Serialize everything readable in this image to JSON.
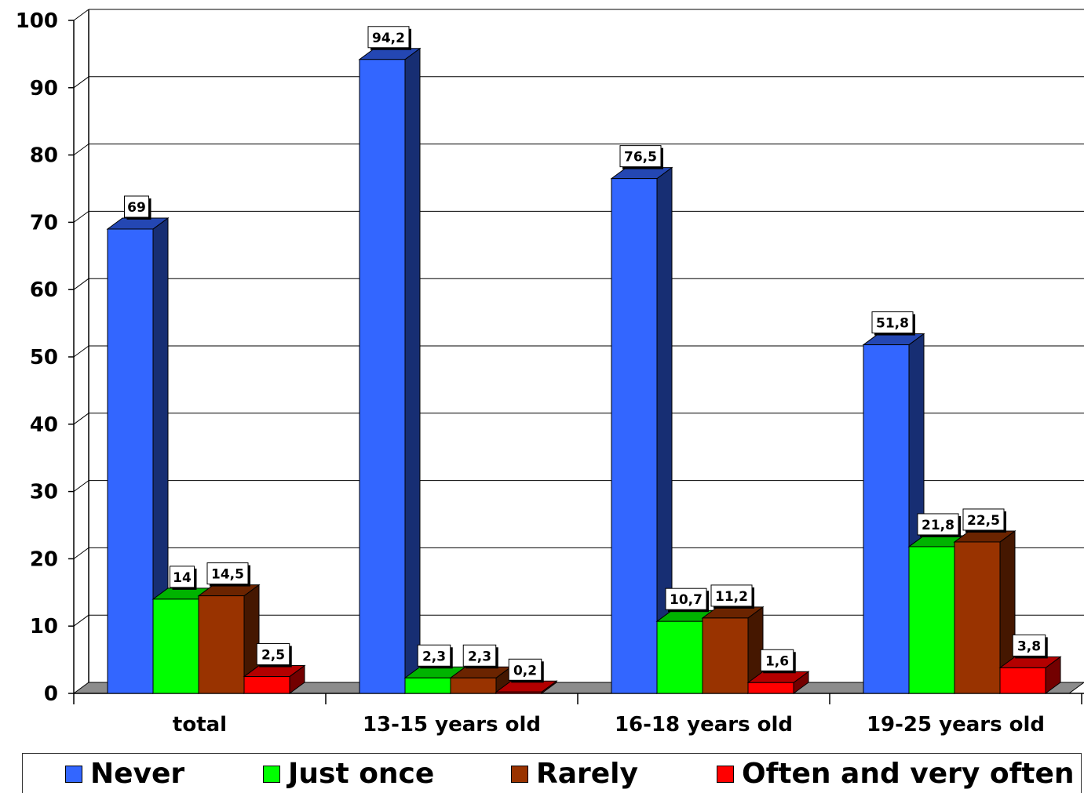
{
  "chart_data": {
    "type": "bar",
    "categories": [
      "total",
      "13-15 years old",
      "16-18 years old",
      "19-25 years old"
    ],
    "series": [
      {
        "name": "Never",
        "color": "#3366ff",
        "values": [
          69,
          94.2,
          76.5,
          51.8
        ],
        "labels": [
          "69",
          "94,2",
          "76,5",
          "51,8"
        ]
      },
      {
        "name": "Just once",
        "color": "#00ff00",
        "values": [
          14,
          2.3,
          10.7,
          21.8
        ],
        "labels": [
          "14",
          "2,3",
          "10,7",
          "21,8"
        ]
      },
      {
        "name": "Rarely",
        "color": "#993300",
        "values": [
          14.5,
          2.3,
          11.2,
          22.5
        ],
        "labels": [
          "14,5",
          "2,3",
          "11,2",
          "22,5"
        ]
      },
      {
        "name": "Often and very often",
        "color": "#ff0000",
        "values": [
          2.5,
          0.2,
          1.6,
          3.8
        ],
        "labels": [
          "2,5",
          "0,2",
          "1,6",
          "3,8"
        ]
      }
    ],
    "yticks": [
      "0",
      "10",
      "20",
      "30",
      "40",
      "50",
      "60",
      "70",
      "80",
      "90",
      "100"
    ],
    "ylim": [
      0,
      100
    ],
    "grid": true,
    "legend": "bottom"
  }
}
